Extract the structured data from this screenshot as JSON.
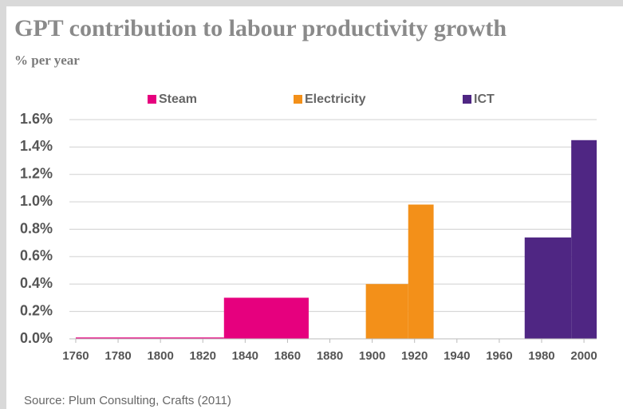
{
  "chart_data": {
    "type": "histogram",
    "title": "GPT contribution to labour productivity growth",
    "subtitle": "% per year",
    "source": "Source: Plum Consulting, Crafts (2011)",
    "series": [
      {
        "name": "Steam",
        "color": "#e6007e",
        "bins": [
          1760,
          1830,
          1870
        ],
        "values": [
          0.01,
          0.3
        ]
      },
      {
        "name": "Electricity",
        "color": "#f39019",
        "bins": [
          1897,
          1917,
          1929
        ],
        "values": [
          0.4,
          0.98
        ]
      },
      {
        "name": "ICT",
        "color": "#4f2683",
        "bins": [
          1972,
          1994,
          2006
        ],
        "values": [
          0.74,
          1.45
        ]
      }
    ],
    "xlim": [
      1757,
      2006
    ],
    "xticks": [
      1760,
      1780,
      1800,
      1820,
      1840,
      1860,
      1880,
      1900,
      1920,
      1940,
      1960,
      1980,
      2000
    ],
    "ylim": [
      0,
      1.6
    ],
    "yticks": [
      {
        "value": 0,
        "label": "0.0%"
      },
      {
        "value": 0.2,
        "label": "0.2%"
      },
      {
        "value": 0.4,
        "label": "0.4%"
      },
      {
        "value": 0.6,
        "label": "0.6%"
      },
      {
        "value": 0.8,
        "label": "0.8%"
      },
      {
        "value": 1.0,
        "label": "1.0%"
      },
      {
        "value": 1.2,
        "label": "1.2%"
      },
      {
        "value": 1.4,
        "label": "1.4%"
      },
      {
        "value": 1.6,
        "label": "1.6%"
      }
    ],
    "grid": true,
    "legend": "top"
  }
}
